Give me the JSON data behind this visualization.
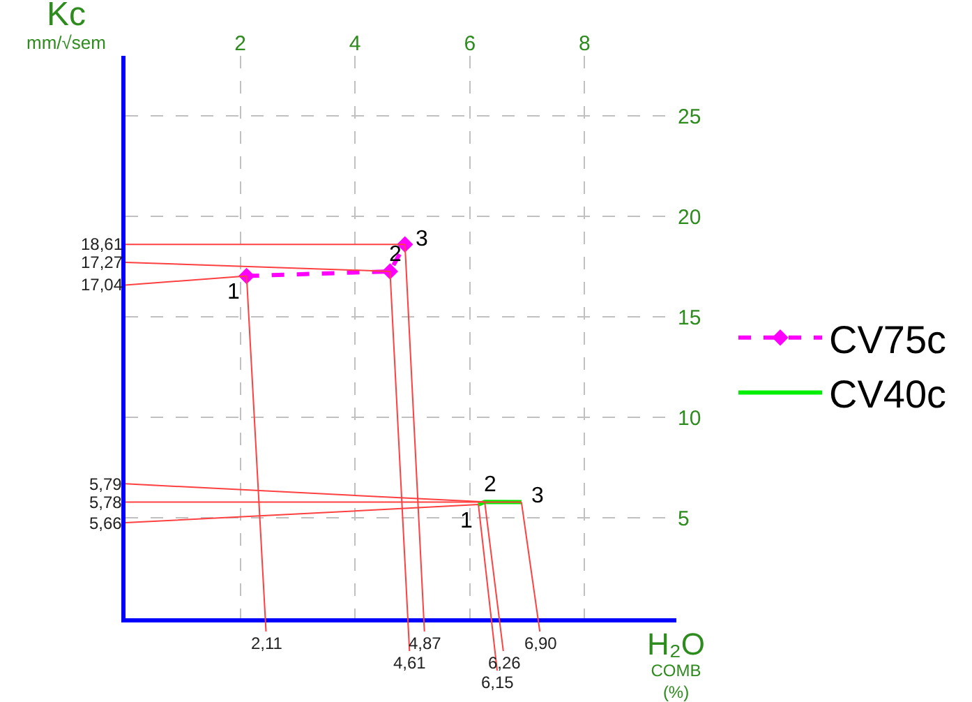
{
  "chart_data": {
    "type": "line",
    "xlabel": "H₂O COMB (%)",
    "ylabel": "Kc mm/√sem",
    "xlim": [
      0,
      9.6
    ],
    "ylim": [
      0,
      28
    ],
    "xticks": [
      2,
      4,
      6,
      8
    ],
    "yticks": [
      5,
      10,
      15,
      20,
      25
    ],
    "grid": true,
    "legend": "right",
    "series": [
      {
        "name": "CV75c",
        "color": "#ff00ff",
        "x": [
          2.11,
          4.61,
          4.87
        ],
        "values": [
          17.04,
          17.27,
          18.61
        ],
        "marker": "diamond",
        "line_style": "dashed"
      },
      {
        "name": "CV40c",
        "color": "#00ee00",
        "x": [
          6.15,
          6.26,
          6.9
        ],
        "values": [
          5.66,
          5.79,
          5.78
        ],
        "marker": "none",
        "line_style": "solid"
      }
    ],
    "annotations": [
      {
        "text": "17,04",
        "x": 2.11,
        "y": 17.04
      },
      {
        "text": "2,11",
        "x": 2.11,
        "y": 17.04
      },
      {
        "text": "1",
        "x": 2.11,
        "y": 17.04
      },
      {
        "text": "17,27",
        "x": 4.61,
        "y": 17.27
      },
      {
        "text": "4,61",
        "x": 4.61,
        "y": 17.27
      },
      {
        "text": "2",
        "x": 4.61,
        "y": 17.27
      },
      {
        "text": "18,61",
        "x": 4.87,
        "y": 18.61
      },
      {
        "text": "4,87",
        "x": 4.87,
        "y": 18.61
      },
      {
        "text": "3",
        "x": 4.87,
        "y": 18.61
      },
      {
        "text": "5,66",
        "x": 6.15,
        "y": 5.66
      },
      {
        "text": "6,15",
        "x": 6.15,
        "y": 5.66
      },
      {
        "text": "1",
        "x": 6.15,
        "y": 5.66
      },
      {
        "text": "5,79",
        "x": 6.26,
        "y": 5.79
      },
      {
        "text": "6,26",
        "x": 6.26,
        "y": 5.79
      },
      {
        "text": "2",
        "x": 6.26,
        "y": 5.79
      },
      {
        "text": "5,78",
        "x": 6.9,
        "y": 5.78
      },
      {
        "text": "6,90",
        "x": 6.9,
        "y": 5.78
      },
      {
        "text": "3",
        "x": 6.9,
        "y": 5.78
      }
    ]
  }
}
